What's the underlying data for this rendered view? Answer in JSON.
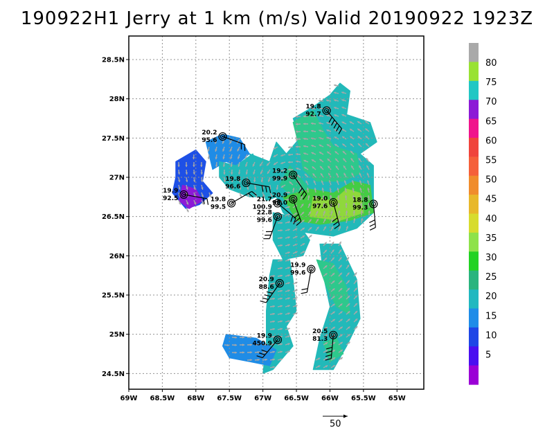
{
  "title": "190922H1 Jerry at 1 km (m/s) Valid 20190922 1923Z",
  "map": {
    "lon_range": [
      -69.0,
      -64.6
    ],
    "lat_range": [
      24.3,
      28.8
    ],
    "lon_ticks": [
      {
        "v": -69.0,
        "label": "69W"
      },
      {
        "v": -68.5,
        "label": "68.5W"
      },
      {
        "v": -68.0,
        "label": "68W"
      },
      {
        "v": -67.5,
        "label": "67.5W"
      },
      {
        "v": -67.0,
        "label": "67W"
      },
      {
        "v": -66.5,
        "label": "66.5W"
      },
      {
        "v": -66.0,
        "label": "66W"
      },
      {
        "v": -65.5,
        "label": "65.5W"
      },
      {
        "v": -65.0,
        "label": "65W"
      }
    ],
    "lat_ticks": [
      {
        "v": 24.5,
        "label": "24.5N"
      },
      {
        "v": 25.0,
        "label": "25N"
      },
      {
        "v": 25.5,
        "label": "25.5N"
      },
      {
        "v": 26.0,
        "label": "26N"
      },
      {
        "v": 26.5,
        "label": "26.5N"
      },
      {
        "v": 27.0,
        "label": "27N"
      },
      {
        "v": 27.5,
        "label": "27.5N"
      },
      {
        "v": 28.0,
        "label": "28N"
      },
      {
        "v": 28.5,
        "label": "28.5N"
      }
    ],
    "grid": "dotted"
  },
  "colorbar": {
    "labels": [
      "80",
      "75",
      "70",
      "65",
      "60",
      "55",
      "50",
      "45",
      "40",
      "35",
      "30",
      "25",
      "20",
      "15",
      "10",
      "5"
    ],
    "colors_top_down": [
      "#a9a9a9",
      "#99e234",
      "#22c7c4",
      "#8c1ad6",
      "#f0148c",
      "#f0443c",
      "#f5603a",
      "#f08c2c",
      "#e8b82a",
      "#d7dc2e",
      "#8ee24a",
      "#22d222",
      "#2ab47e",
      "#20b8c0",
      "#1e8ce8",
      "#1e46e6",
      "#4a0ff0",
      "#9b00d6"
    ]
  },
  "wind_regions": [
    {
      "color": "#22b9b9",
      "pts": [
        [
          -66.25,
          27.9
        ],
        [
          -66.0,
          28.05
        ],
        [
          -65.85,
          28.2
        ],
        [
          -65.7,
          28.1
        ],
        [
          -65.75,
          27.8
        ],
        [
          -65.4,
          27.7
        ],
        [
          -65.3,
          27.45
        ],
        [
          -65.55,
          27.3
        ],
        [
          -65.35,
          27.15
        ],
        [
          -65.35,
          26.55
        ],
        [
          -65.6,
          26.35
        ],
        [
          -65.95,
          26.25
        ],
        [
          -66.4,
          26.3
        ],
        [
          -66.7,
          26.55
        ],
        [
          -66.8,
          26.75
        ],
        [
          -66.95,
          26.7
        ],
        [
          -67.1,
          27.0
        ],
        [
          -67.2,
          27.3
        ],
        [
          -66.9,
          27.2
        ],
        [
          -66.8,
          27.45
        ],
        [
          -66.65,
          27.3
        ],
        [
          -66.45,
          27.5
        ],
        [
          -66.55,
          27.75
        ]
      ]
    },
    {
      "color": "#2ec88c",
      "pts": [
        [
          -66.55,
          27.7
        ],
        [
          -66.25,
          27.85
        ],
        [
          -66.1,
          27.6
        ],
        [
          -65.95,
          27.4
        ],
        [
          -65.6,
          27.3
        ],
        [
          -65.55,
          27.05
        ],
        [
          -65.8,
          26.95
        ],
        [
          -66.2,
          26.95
        ],
        [
          -66.4,
          27.1
        ],
        [
          -66.45,
          27.35
        ]
      ]
    },
    {
      "color": "#29c48c",
      "pts": [
        [
          -66.6,
          27.15
        ],
        [
          -66.45,
          27.0
        ],
        [
          -66.3,
          26.85
        ],
        [
          -66.55,
          26.75
        ],
        [
          -66.75,
          26.9
        ]
      ]
    },
    {
      "color": "#44cc44",
      "pts": [
        [
          -66.7,
          26.75
        ],
        [
          -66.3,
          26.85
        ],
        [
          -65.95,
          26.8
        ],
        [
          -65.65,
          26.95
        ],
        [
          -65.4,
          26.9
        ],
        [
          -65.35,
          26.55
        ],
        [
          -65.7,
          26.45
        ],
        [
          -66.15,
          26.4
        ],
        [
          -66.5,
          26.45
        ]
      ]
    },
    {
      "color": "#8fd83c",
      "pts": [
        [
          -66.25,
          26.75
        ],
        [
          -65.95,
          26.7
        ],
        [
          -65.75,
          26.85
        ],
        [
          -65.55,
          26.8
        ],
        [
          -65.5,
          26.55
        ],
        [
          -65.85,
          26.45
        ],
        [
          -66.3,
          26.5
        ]
      ]
    },
    {
      "color": "#1f8ce6",
      "pts": [
        [
          -67.85,
          27.45
        ],
        [
          -67.6,
          27.55
        ],
        [
          -67.35,
          27.5
        ],
        [
          -67.2,
          27.3
        ],
        [
          -67.4,
          27.15
        ],
        [
          -67.55,
          27.2
        ],
        [
          -67.75,
          27.1
        ]
      ]
    },
    {
      "color": "#22b9b9",
      "pts": [
        [
          -67.65,
          27.2
        ],
        [
          -67.4,
          27.15
        ],
        [
          -67.15,
          27.3
        ],
        [
          -67.0,
          27.0
        ],
        [
          -66.9,
          26.75
        ],
        [
          -67.2,
          26.75
        ],
        [
          -67.5,
          26.85
        ],
        [
          -67.65,
          27.0
        ]
      ]
    },
    {
      "color": "#1e50e6",
      "pts": [
        [
          -68.3,
          27.2
        ],
        [
          -68.0,
          27.35
        ],
        [
          -67.85,
          27.2
        ],
        [
          -67.9,
          26.95
        ],
        [
          -67.75,
          26.8
        ],
        [
          -67.95,
          26.65
        ],
        [
          -68.15,
          26.6
        ],
        [
          -68.35,
          26.8
        ],
        [
          -68.3,
          27.0
        ]
      ]
    },
    {
      "color": "#8c1ad6",
      "pts": [
        [
          -68.2,
          26.9
        ],
        [
          -68.0,
          26.85
        ],
        [
          -67.9,
          26.7
        ],
        [
          -68.1,
          26.6
        ],
        [
          -68.25,
          26.7
        ]
      ]
    },
    {
      "color": "#22b9b9",
      "pts": [
        [
          -66.85,
          26.55
        ],
        [
          -66.55,
          26.5
        ],
        [
          -66.3,
          26.2
        ],
        [
          -66.4,
          26.0
        ],
        [
          -66.7,
          25.95
        ],
        [
          -66.85,
          26.2
        ]
      ]
    },
    {
      "color": "#22b9b9",
      "pts": [
        [
          -66.85,
          25.95
        ],
        [
          -66.6,
          25.95
        ],
        [
          -66.55,
          25.7
        ],
        [
          -66.5,
          25.3
        ],
        [
          -66.65,
          25.1
        ],
        [
          -66.55,
          24.85
        ],
        [
          -66.85,
          24.55
        ],
        [
          -67.0,
          24.5
        ],
        [
          -66.95,
          24.85
        ],
        [
          -66.95,
          25.3
        ],
        [
          -66.9,
          25.75
        ]
      ]
    },
    {
      "color": "#1f8ce6",
      "pts": [
        [
          -67.55,
          25.0
        ],
        [
          -67.1,
          24.95
        ],
        [
          -66.8,
          24.8
        ],
        [
          -66.9,
          24.6
        ],
        [
          -67.2,
          24.65
        ],
        [
          -67.5,
          24.7
        ],
        [
          -67.6,
          24.85
        ]
      ]
    },
    {
      "color": "#22b9b9",
      "pts": [
        [
          -66.15,
          26.15
        ],
        [
          -65.85,
          26.15
        ],
        [
          -65.6,
          25.7
        ],
        [
          -65.55,
          25.2
        ],
        [
          -65.75,
          24.85
        ],
        [
          -65.95,
          24.55
        ],
        [
          -66.25,
          24.55
        ],
        [
          -66.15,
          24.95
        ],
        [
          -66.0,
          25.35
        ],
        [
          -66.1,
          25.75
        ]
      ]
    },
    {
      "color": "#2ec88c",
      "pts": [
        [
          -66.2,
          25.95
        ],
        [
          -65.95,
          25.9
        ],
        [
          -65.75,
          25.6
        ],
        [
          -65.7,
          25.25
        ],
        [
          -65.9,
          25.35
        ],
        [
          -66.05,
          25.6
        ]
      ]
    },
    {
      "color": "#2ec88c",
      "pts": [
        [
          -66.1,
          24.9
        ],
        [
          -65.9,
          24.95
        ],
        [
          -65.8,
          24.75
        ],
        [
          -66.0,
          24.65
        ]
      ]
    }
  ],
  "stations": [
    {
      "lon": -66.05,
      "lat": 27.85,
      "labels": [
        "19.8",
        "92.7"
      ],
      "barb_angle": 140,
      "barbs": 5
    },
    {
      "lon": -67.6,
      "lat": 27.52,
      "labels": [
        "20.2",
        "95.6"
      ],
      "barb_angle": 110,
      "barbs": 2
    },
    {
      "lon": -66.55,
      "lat": 27.03,
      "labels": [
        "19.2",
        "99.9"
      ],
      "barb_angle": 145,
      "barbs": 3
    },
    {
      "lon": -67.25,
      "lat": 26.93,
      "labels": [
        "19.8",
        "96.6"
      ],
      "barb_angle": 100,
      "barbs": 3
    },
    {
      "lon": -68.18,
      "lat": 26.78,
      "labels": [
        "19.9",
        "92.5"
      ],
      "barb_angle": 100,
      "barbs": 2
    },
    {
      "lon": -67.47,
      "lat": 26.67,
      "labels": [
        "19.8",
        "99.5"
      ],
      "barb_angle": 60,
      "barbs": 2
    },
    {
      "lon": -66.78,
      "lat": 26.67,
      "labels": [
        "21.7",
        "100.9"
      ],
      "barb_angle": 130,
      "barbs": 2
    },
    {
      "lon": -66.55,
      "lat": 26.72,
      "labels": [
        "20.9",
        "99.0"
      ],
      "barb_angle": 160,
      "barbs": 3
    },
    {
      "lon": -66.78,
      "lat": 26.5,
      "labels": [
        "22.8",
        "99.6"
      ],
      "barb_angle": 200,
      "barbs": 3
    },
    {
      "lon": -65.95,
      "lat": 26.68,
      "labels": [
        "19.0",
        "97.6"
      ],
      "barb_angle": 165,
      "barbs": 3
    },
    {
      "lon": -65.35,
      "lat": 26.66,
      "labels": [
        "18.8",
        "99.3"
      ],
      "barb_angle": 175,
      "barbs": 3
    },
    {
      "lon": -66.28,
      "lat": 25.83,
      "labels": [
        "19.9",
        "99.6"
      ],
      "barb_angle": 190,
      "barbs": 2
    },
    {
      "lon": -66.75,
      "lat": 25.65,
      "labels": [
        "20.9",
        "88.6"
      ],
      "barb_angle": 215,
      "barbs": 4
    },
    {
      "lon": -66.78,
      "lat": 24.93,
      "labels": [
        "19.9",
        "450.9"
      ],
      "barb_angle": 220,
      "barbs": 3
    },
    {
      "lon": -65.95,
      "lat": 24.99,
      "labels": [
        "20.5",
        "81.3"
      ],
      "barb_angle": 185,
      "barbs": 4
    }
  ],
  "reference_vector": {
    "label": "50"
  }
}
